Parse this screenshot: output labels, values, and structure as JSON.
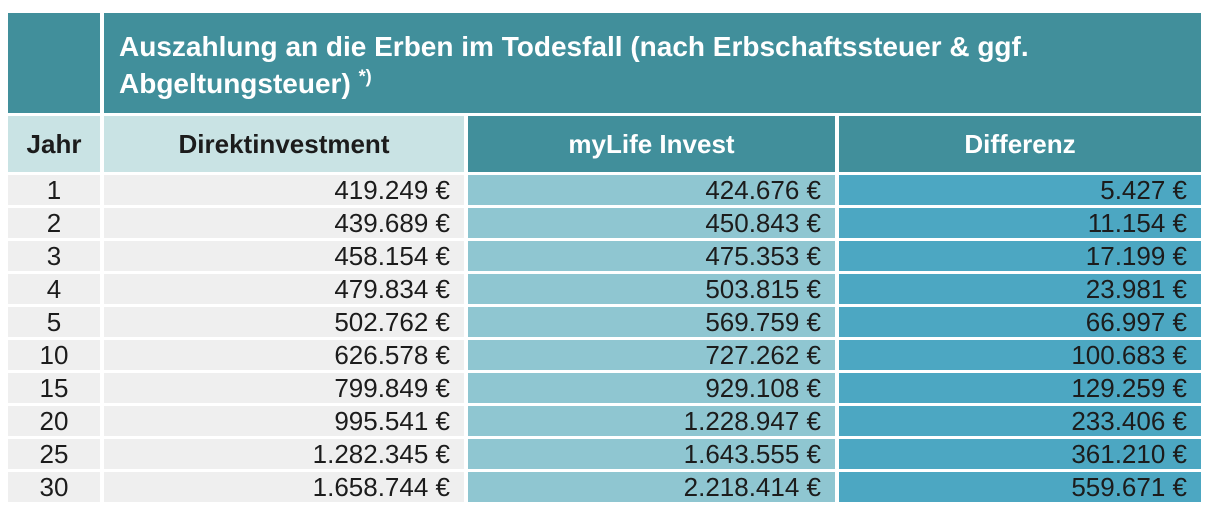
{
  "title": {
    "text": "Auszahlung an die Erben im Todesfall (nach Erbschaftssteuer & ggf. Abgeltungsteuer)",
    "note": "*)"
  },
  "table": {
    "columns": [
      "Jahr",
      "Direktinvestment",
      "myLife Invest",
      "Differenz"
    ],
    "rows": [
      {
        "jahr": "1",
        "direktinvestment": "419.249 €",
        "mylife_invest": "424.676 €",
        "differenz": "5.427 €"
      },
      {
        "jahr": "2",
        "direktinvestment": "439.689 €",
        "mylife_invest": "450.843 €",
        "differenz": "11.154 €"
      },
      {
        "jahr": "3",
        "direktinvestment": "458.154 €",
        "mylife_invest": "475.353 €",
        "differenz": "17.199 €"
      },
      {
        "jahr": "4",
        "direktinvestment": "479.834 €",
        "mylife_invest": "503.815 €",
        "differenz": "23.981 €"
      },
      {
        "jahr": "5",
        "direktinvestment": "502.762 €",
        "mylife_invest": "569.759 €",
        "differenz": "66.997 €"
      },
      {
        "jahr": "10",
        "direktinvestment": "626.578 €",
        "mylife_invest": "727.262 €",
        "differenz": "100.683 €"
      },
      {
        "jahr": "15",
        "direktinvestment": "799.849 €",
        "mylife_invest": "929.108 €",
        "differenz": "129.259 €"
      },
      {
        "jahr": "20",
        "direktinvestment": "995.541 €",
        "mylife_invest": "1.228.947 €",
        "differenz": "233.406 €"
      },
      {
        "jahr": "25",
        "direktinvestment": "1.282.345 €",
        "mylife_invest": "1.643.555 €",
        "differenz": "361.210 €"
      },
      {
        "jahr": "30",
        "direktinvestment": "1.658.744 €",
        "mylife_invest": "2.218.414 €",
        "differenz": "559.671 €"
      }
    ]
  },
  "colors": {
    "teal_dark": "#418f9b",
    "teal_pale": "#c9e3e4",
    "blue_light": "#8fc6d1",
    "blue_medium": "#4ca7c2",
    "row_gray": "#efefef"
  }
}
